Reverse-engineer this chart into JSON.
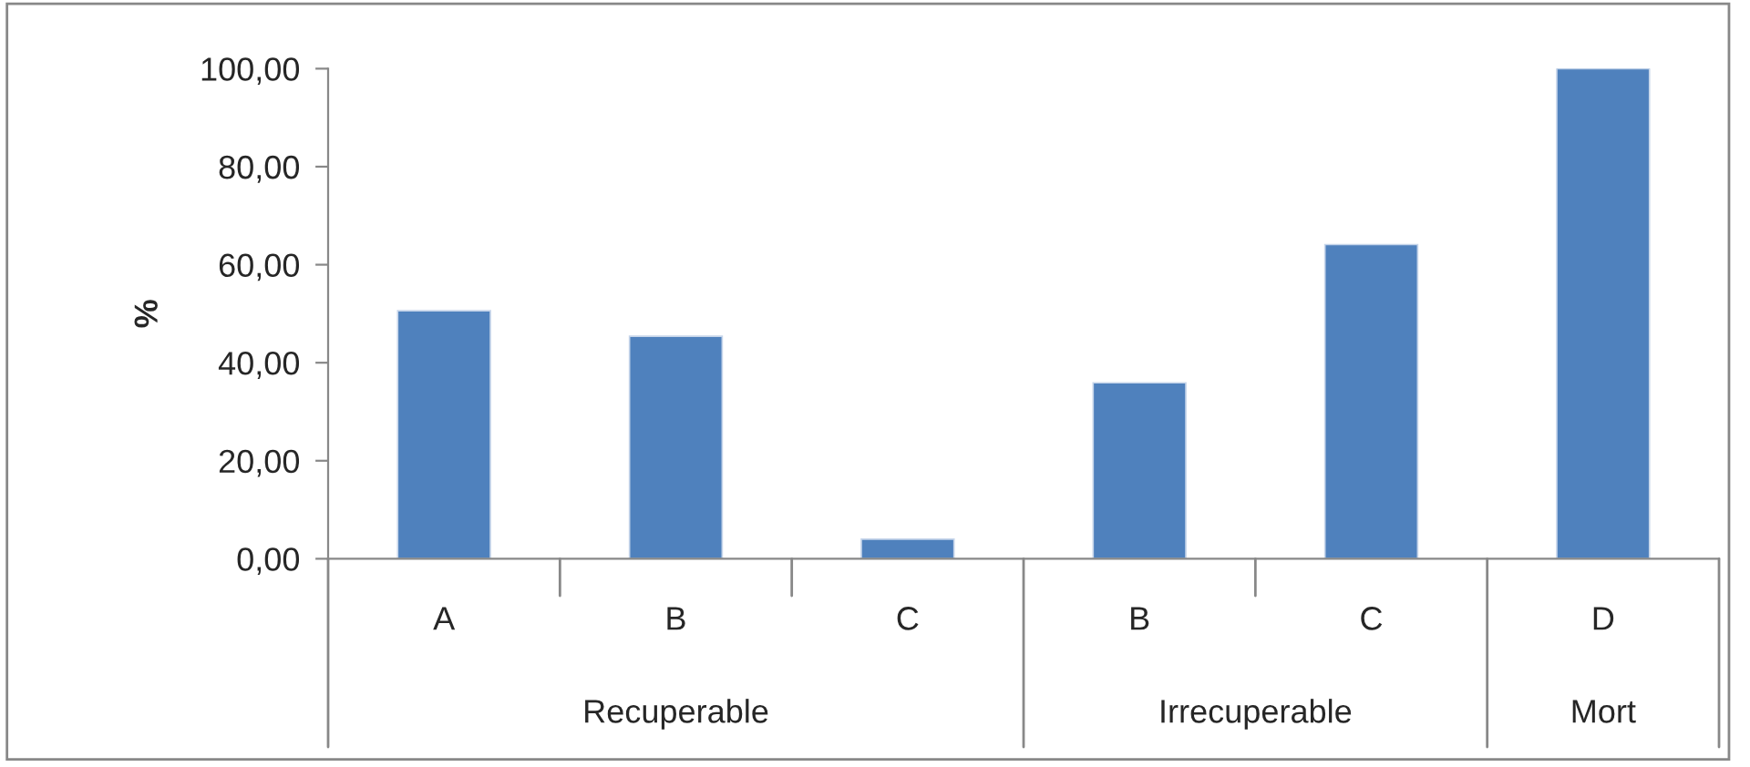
{
  "chart_data": {
    "type": "bar",
    "ylabel": "%",
    "categories": [
      "A",
      "B",
      "C",
      "B",
      "C",
      "D"
    ],
    "series": [
      {
        "color": "#4f81bd",
        "values": [
          50.6,
          45.4,
          4.0,
          35.9,
          64.1,
          100.0
        ]
      }
    ],
    "annotations": [
      "Recuperable",
      "Irrecuperable",
      "Mort"
    ],
    "ylim": [
      0,
      100
    ],
    "yticks": [
      {
        "value": 0,
        "label": "0,00"
      },
      {
        "value": 20,
        "label": "20,00"
      },
      {
        "value": 40,
        "label": "40,00"
      },
      {
        "value": 60,
        "label": "60,00"
      },
      {
        "value": 80,
        "label": "80,00"
      },
      {
        "value": 100,
        "label": "100,00"
      }
    ],
    "grid": false,
    "legend": false
  }
}
